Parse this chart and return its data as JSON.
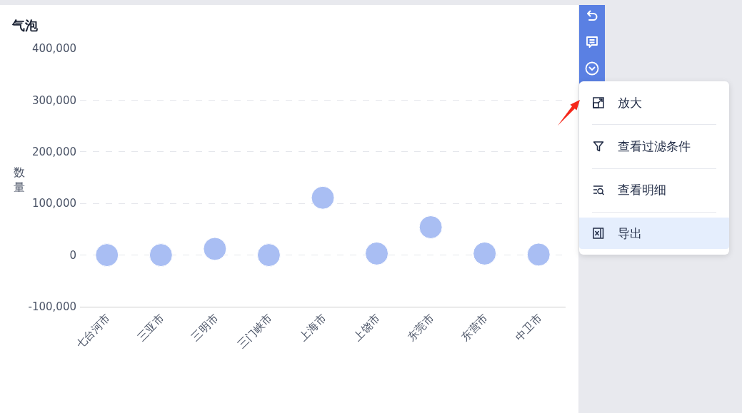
{
  "chart_data": {
    "type": "scatter",
    "title": "气泡",
    "ylabel": "数量",
    "categories": [
      "七台河市",
      "三亚市",
      "三明市",
      "三门峡市",
      "上海市",
      "上饶市",
      "东莞市",
      "东营市",
      "中卫市"
    ],
    "values": [
      0,
      0,
      12000,
      0,
      111000,
      3000,
      54000,
      3000,
      1000
    ],
    "color": "#a9bef3",
    "marker": "circle",
    "ylim": [
      -100000,
      400000
    ],
    "yticks": [
      {
        "value": -100000,
        "label": "-100,000"
      },
      0,
      {
        "value": 100000,
        "label": "100,000"
      },
      {
        "value": 200000,
        "label": "200,000"
      },
      {
        "value": 300000,
        "label": "300,000"
      },
      {
        "value": 400000,
        "label": "400,000"
      }
    ],
    "grid": "y",
    "annotations": [
      "放大",
      "查看过滤条件",
      "查看明细",
      "导出"
    ]
  }
}
